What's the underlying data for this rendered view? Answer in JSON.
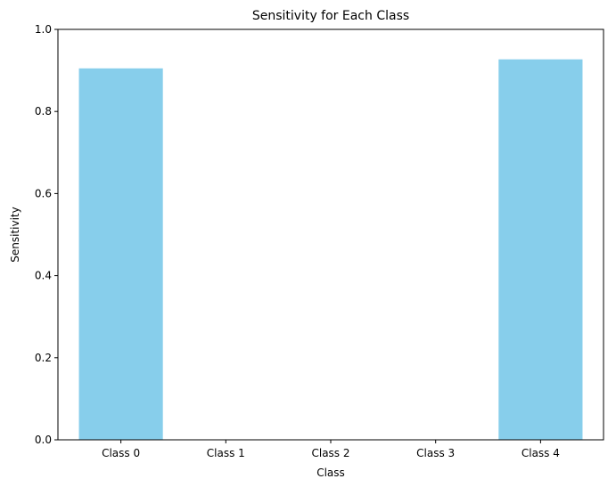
{
  "chart_data": {
    "type": "bar",
    "title": "Sensitivity for Each Class",
    "xlabel": "Class",
    "ylabel": "Sensitivity",
    "categories": [
      "Class 0",
      "Class 1",
      "Class 2",
      "Class 3",
      "Class 4"
    ],
    "values": [
      0.905,
      0.0,
      0.0,
      0.0,
      0.927
    ],
    "ylim": [
      0,
      1.0
    ],
    "yticks": [
      "0.0",
      "0.2",
      "0.4",
      "0.6",
      "0.8",
      "1.0"
    ],
    "bar_color": "#87CEEB",
    "grid": false,
    "legend": "none"
  }
}
